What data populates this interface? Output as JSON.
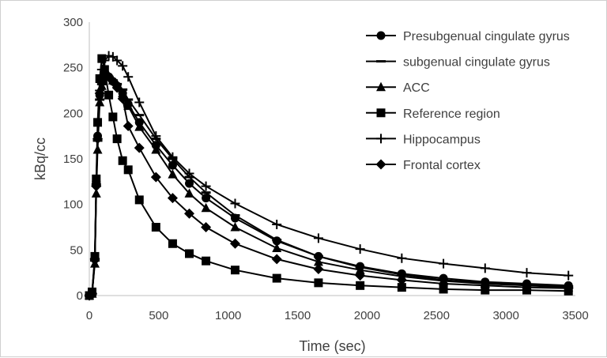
{
  "chart_data": {
    "type": "line",
    "xlabel": "Time (sec)",
    "ylabel": "kBq/cc",
    "xlim": [
      0,
      3500
    ],
    "ylim": [
      0,
      300
    ],
    "xticks": [
      "0",
      "500",
      "1000",
      "1500",
      "2000",
      "2500",
      "3000",
      "3500"
    ],
    "yticks": [
      "0",
      "50",
      "100",
      "150",
      "200",
      "250",
      "300"
    ],
    "grid": false,
    "legend_position": "top-right",
    "series": [
      {
        "name": "Presubgenual cingulate gyrus",
        "marker": "circle",
        "x": [
          0,
          20,
          40,
          50,
          60,
          75,
          90,
          110,
          140,
          170,
          200,
          240,
          280,
          360,
          480,
          600,
          720,
          840,
          1050,
          1350,
          1650,
          1950,
          2250,
          2550,
          2850,
          3150,
          3450
        ],
        "y": [
          0,
          2,
          40,
          125,
          175,
          220,
          235,
          245,
          240,
          235,
          230,
          222,
          210,
          190,
          165,
          143,
          123,
          107,
          85,
          60,
          43,
          32,
          24,
          19,
          15,
          13,
          11
        ]
      },
      {
        "name": "subgenual cingulate gyrus",
        "marker": "dash",
        "x": [
          0,
          20,
          40,
          50,
          60,
          75,
          90,
          110,
          140,
          170,
          200,
          240,
          280,
          360,
          480,
          600,
          720,
          840,
          1050,
          1350,
          1650,
          1950,
          2250,
          2550,
          2850,
          3150,
          3450
        ],
        "y": [
          0,
          2,
          40,
          122,
          170,
          215,
          232,
          242,
          240,
          236,
          232,
          226,
          215,
          198,
          172,
          150,
          130,
          113,
          88,
          61,
          43,
          31,
          23,
          17,
          14,
          12,
          10
        ]
      },
      {
        "name": "ACC",
        "marker": "triangle",
        "x": [
          0,
          20,
          40,
          50,
          60,
          75,
          90,
          110,
          140,
          170,
          200,
          240,
          280,
          360,
          480,
          600,
          720,
          840,
          1050,
          1350,
          1650,
          1950,
          2250,
          2550,
          2850,
          3150,
          3450
        ],
        "y": [
          0,
          2,
          35,
          112,
          160,
          212,
          230,
          240,
          240,
          236,
          232,
          222,
          208,
          185,
          160,
          133,
          112,
          96,
          75,
          52,
          37,
          28,
          21,
          16,
          13,
          11,
          9
        ]
      },
      {
        "name": "Reference region",
        "marker": "square",
        "x": [
          0,
          20,
          40,
          50,
          60,
          75,
          90,
          110,
          140,
          170,
          200,
          240,
          280,
          360,
          480,
          600,
          720,
          840,
          1050,
          1350,
          1650,
          1950,
          2250,
          2550,
          2850,
          3150,
          3450
        ],
        "y": [
          0,
          4,
          43,
          128,
          190,
          238,
          260,
          248,
          220,
          196,
          172,
          148,
          138,
          105,
          75,
          57,
          46,
          38,
          28,
          19,
          14,
          11,
          9,
          7,
          6,
          6,
          5
        ]
      },
      {
        "name": "Hippocampus",
        "marker": "plus",
        "x": [
          0,
          20,
          40,
          50,
          60,
          75,
          90,
          110,
          140,
          170,
          200,
          240,
          280,
          360,
          480,
          600,
          720,
          840,
          1050,
          1350,
          1650,
          1950,
          2250,
          2550,
          2850,
          3150,
          3450
        ],
        "y": [
          0,
          2,
          38,
          120,
          172,
          225,
          248,
          258,
          263,
          262,
          258,
          252,
          240,
          212,
          175,
          152,
          134,
          120,
          101,
          78,
          63,
          51,
          41,
          35,
          30,
          25,
          22
        ]
      },
      {
        "name": "Frontal cortex",
        "marker": "diamond",
        "x": [
          0,
          20,
          40,
          50,
          60,
          75,
          90,
          110,
          140,
          170,
          200,
          240,
          280,
          360,
          480,
          600,
          720,
          840,
          1050,
          1350,
          1650,
          1950,
          2250,
          2550,
          2850,
          3150,
          3450
        ],
        "y": [
          0,
          2,
          40,
          120,
          172,
          222,
          240,
          245,
          240,
          235,
          228,
          216,
          186,
          162,
          130,
          107,
          90,
          75,
          57,
          40,
          29,
          22,
          17,
          13,
          11,
          9,
          8
        ]
      }
    ]
  }
}
